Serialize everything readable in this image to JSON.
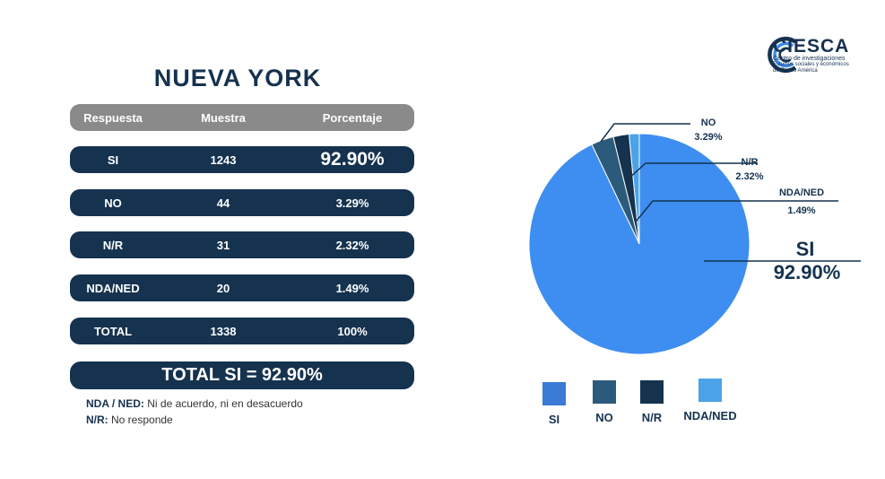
{
  "title": "NUEVA YORK",
  "table": {
    "headers": [
      "Respuesta",
      "Muestra",
      "Porcentaje"
    ],
    "rows": [
      {
        "respuesta": "SI",
        "muestra": "1243",
        "porcentaje": "92.90%"
      },
      {
        "respuesta": "NO",
        "muestra": "44",
        "porcentaje": "3.29%"
      },
      {
        "respuesta": "N/R",
        "muestra": "31",
        "porcentaje": "2.32%"
      },
      {
        "respuesta": "NDA/NED",
        "muestra": "20",
        "porcentaje": "1.49%"
      },
      {
        "respuesta": "TOTAL",
        "muestra": "1338",
        "porcentaje": "100%"
      }
    ],
    "total_si": "TOTAL SI = 92.90%"
  },
  "notes": [
    {
      "key": "NDA / NED:",
      "text": " Ni de acuerdo, ni en desacuerdo"
    },
    {
      "key": "N/R:",
      "text": " No responde"
    }
  ],
  "logo": {
    "name": "CIESCA",
    "line1": "Centro de investigaciones",
    "line2": "Estudios sociales y económicos",
    "line3": "de Centro América"
  },
  "chart_data": {
    "type": "pie",
    "slices": [
      {
        "label": "SI",
        "value": 92.9,
        "display": "92.90%",
        "color": "#3d8ef0"
      },
      {
        "label": "NO",
        "value": 3.29,
        "display": "3.29%",
        "color": "#2c5a7a"
      },
      {
        "label": "N/R",
        "value": 2.32,
        "display": "2.32%",
        "color": "#15324f"
      },
      {
        "label": "NDA/NED",
        "value": 1.49,
        "display": "1.49%",
        "color": "#4aa3e8"
      }
    ],
    "legend": {
      "placement": "bottom",
      "items": [
        {
          "label": "SI",
          "color": "#3a7bd5"
        },
        {
          "label": "NO",
          "color": "#2c5a7a"
        },
        {
          "label": "N/R",
          "color": "#15324f"
        },
        {
          "label": "NDA/NED",
          "color": "#4aa3e8"
        }
      ]
    }
  }
}
